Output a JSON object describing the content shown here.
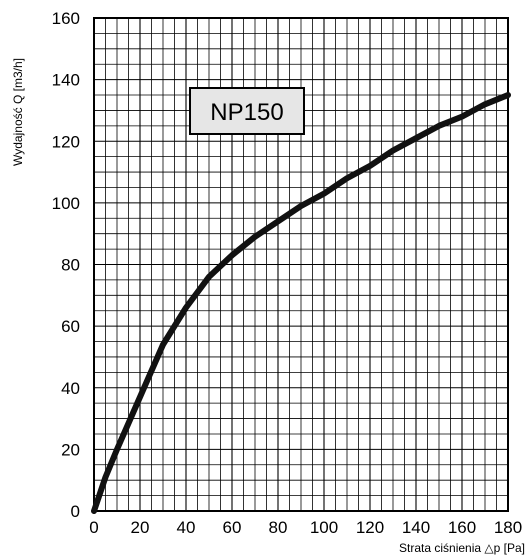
{
  "chart_data": {
    "type": "line",
    "title": "",
    "xlabel": "Strata ciśnienia △p [Pa]",
    "ylabel": "Wydajność Q [m3/h]",
    "xlim": [
      0,
      180
    ],
    "ylim": [
      0,
      160
    ],
    "x_ticks": [
      "0",
      "20",
      "40",
      "60",
      "80",
      "100",
      "120",
      "140",
      "160",
      "180"
    ],
    "y_ticks": [
      "0",
      "20",
      "40",
      "60",
      "80",
      "100",
      "120",
      "140",
      "160"
    ],
    "grid": true,
    "annotation": "NP150",
    "series": [
      {
        "x": [
          0,
          5,
          10,
          20,
          30,
          40,
          50,
          60,
          70,
          80,
          90,
          100,
          110,
          120,
          130,
          140,
          150,
          160,
          170,
          180
        ],
        "y": [
          0,
          11,
          20,
          37,
          54,
          66,
          76,
          83,
          89,
          94,
          99,
          103,
          108,
          112,
          117,
          121,
          125,
          128,
          132,
          135
        ]
      }
    ],
    "line_color": "#111111"
  }
}
